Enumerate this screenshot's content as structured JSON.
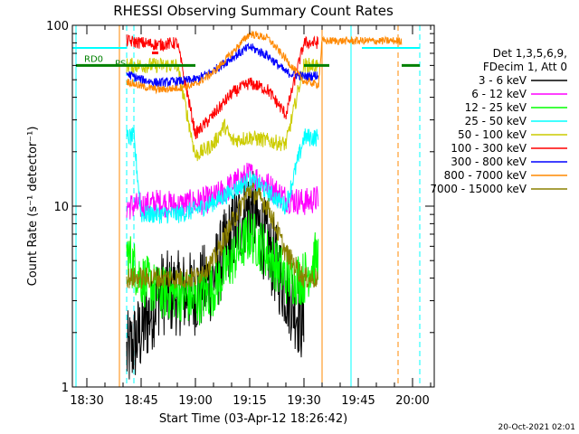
{
  "chart_data": {
    "type": "line",
    "title": "RHESSI Observing Summary Count Rates",
    "xlabel": "Start Time (03-Apr-12 18:26:42)",
    "ylabel": "Count Rate (s⁻¹ detector⁻¹)",
    "y_scale": "log",
    "ylim": [
      1,
      100
    ],
    "xlim": [
      "18:26",
      "20:06"
    ],
    "x_ticks": [
      "18:30",
      "18:45",
      "19:00",
      "19:15",
      "19:30",
      "19:45",
      "20:00"
    ],
    "y_ticks": [
      "1",
      "10",
      "100"
    ],
    "legend": {
      "position": "right",
      "header": [
        "Det 1,3,5,6,9,",
        "FDecim 1, Att 0"
      ]
    },
    "series": [
      {
        "name": "3 - 6 keV",
        "color": "#000000",
        "start": "18:41",
        "end": "19:30",
        "t": [
          "18:41",
          "18:45",
          "18:50",
          "18:55",
          "19:00",
          "19:05",
          "19:10",
          "19:15",
          "19:20",
          "19:25",
          "19:30"
        ],
        "v": [
          1.5,
          2.0,
          3.3,
          3.3,
          3.3,
          4.0,
          7.0,
          10.0,
          6.0,
          3.5,
          2.2
        ]
      },
      {
        "name": "6 - 12 keV",
        "color": "#ff00ff",
        "start": "18:41",
        "end": "19:34",
        "t": [
          "18:41",
          "18:45",
          "18:50",
          "18:55",
          "19:00",
          "19:05",
          "19:10",
          "19:15",
          "19:20",
          "19:25",
          "19:30",
          "19:34"
        ],
        "v": [
          10,
          10,
          10.5,
          10,
          10.5,
          11,
          13,
          15,
          13,
          11,
          10.5,
          11
        ]
      },
      {
        "name": "12 - 25 keV",
        "color": "#00ff00",
        "start": "18:41",
        "end": "19:34",
        "t": [
          "18:41",
          "18:45",
          "18:50",
          "18:55",
          "19:00",
          "19:05",
          "19:10",
          "19:15",
          "19:20",
          "19:25",
          "19:30",
          "19:34"
        ],
        "v": [
          5.5,
          4.0,
          3.3,
          3.3,
          3.0,
          3.5,
          5.0,
          7.0,
          5.5,
          4.0,
          4.0,
          5.5
        ]
      },
      {
        "name": "25 - 50 keV",
        "color": "#00ffff",
        "start": "18:41",
        "end": "19:34",
        "t": [
          "18:41",
          "18:43",
          "18:45",
          "18:50",
          "18:55",
          "19:00",
          "19:05",
          "19:10",
          "19:15",
          "19:20",
          "19:25",
          "19:30",
          "19:34"
        ],
        "v": [
          24,
          24,
          9.0,
          9.0,
          9.0,
          9.5,
          10.5,
          12,
          14,
          12,
          10,
          24,
          24
        ]
      },
      {
        "name": "50 - 100 keV",
        "color": "#cccc00",
        "start": "18:41",
        "end": "19:34",
        "t": [
          "18:41",
          "18:45",
          "18:50",
          "18:55",
          "19:00",
          "19:05",
          "19:08",
          "19:10",
          "19:15",
          "19:20",
          "19:25",
          "19:30",
          "19:34"
        ],
        "v": [
          60,
          60,
          60,
          60,
          19,
          22,
          28,
          23,
          24,
          23,
          22,
          60,
          60
        ]
      },
      {
        "name": "100 - 300 keV",
        "color": "#ff0000",
        "start": "18:41",
        "end": "19:34",
        "t": [
          "18:41",
          "18:45",
          "18:50",
          "18:55",
          "19:00",
          "19:05",
          "19:10",
          "19:15",
          "19:20",
          "19:25",
          "19:30",
          "19:34"
        ],
        "v": [
          82,
          80,
          78,
          80,
          25,
          32,
          42,
          48,
          44,
          32,
          80,
          80
        ]
      },
      {
        "name": "300 - 800 keV",
        "color": "#0000ff",
        "start": "18:41",
        "end": "19:34",
        "t": [
          "18:41",
          "18:45",
          "18:50",
          "18:55",
          "19:00",
          "19:05",
          "19:10",
          "19:15",
          "19:20",
          "19:25",
          "19:30",
          "19:34"
        ],
        "v": [
          54,
          50,
          48,
          49,
          50,
          56,
          66,
          76,
          68,
          55,
          52,
          53
        ]
      },
      {
        "name": "800 - 7000 keV",
        "color": "#ff8800",
        "start": "18:41",
        "end": "19:57",
        "t": [
          "18:41",
          "18:45",
          "18:50",
          "18:55",
          "19:00",
          "19:05",
          "19:10",
          "19:15",
          "19:20",
          "19:25",
          "19:30",
          "19:34",
          "19:35",
          "19:57"
        ],
        "v": [
          49,
          46,
          44,
          45,
          47,
          55,
          70,
          90,
          85,
          65,
          49,
          47,
          82,
          82
        ]
      },
      {
        "name": "7000 - 15000 keV",
        "color": "#8b8000",
        "start": "18:41",
        "end": "19:34",
        "t": [
          "18:41",
          "18:45",
          "18:50",
          "18:55",
          "19:00",
          "19:05",
          "19:10",
          "19:15",
          "19:20",
          "19:25",
          "19:30",
          "19:34"
        ],
        "v": [
          4.0,
          4.0,
          4.0,
          4.0,
          4.0,
          5.0,
          8.0,
          12.5,
          10,
          5.5,
          4.0,
          4.0
        ]
      }
    ],
    "markers": {
      "attenuator_line": {
        "color": "#00ffff",
        "value": 75,
        "segments": [
          [
            "18:26",
            "18:41"
          ],
          [
            "19:46",
            "20:02"
          ]
        ]
      },
      "RD0": {
        "label": "RD0",
        "color": "#008000",
        "value": 60,
        "segments": [
          [
            "18:27",
            "19:00"
          ],
          [
            "19:30",
            "19:37"
          ],
          [
            "19:57",
            "20:02"
          ]
        ]
      },
      "PS": {
        "label": "PS",
        "color": "#008000"
      },
      "flags": [
        {
          "color": "#ff0000",
          "label": "F"
        },
        {
          "color": "#ff0000",
          "label": ""
        }
      ]
    },
    "vertical_lines": [
      {
        "time": "18:27",
        "color": "#00ffff",
        "style": "solid"
      },
      {
        "time": "18:39",
        "color": "#ff8800",
        "style": "solid"
      },
      {
        "time": "18:41",
        "color": "#00ffff",
        "style": "dashed"
      },
      {
        "time": "18:43",
        "color": "#00ffff",
        "style": "dashed"
      },
      {
        "time": "19:35",
        "color": "#ff8800",
        "style": "solid"
      },
      {
        "time": "19:43",
        "color": "#00ffff",
        "style": "solid"
      },
      {
        "time": "19:56",
        "color": "#ff8800",
        "style": "dashed"
      },
      {
        "time": "20:02",
        "color": "#00ffff",
        "style": "dashed"
      }
    ]
  },
  "footer": {
    "timestamp": "20-Oct-2021 02:01"
  }
}
